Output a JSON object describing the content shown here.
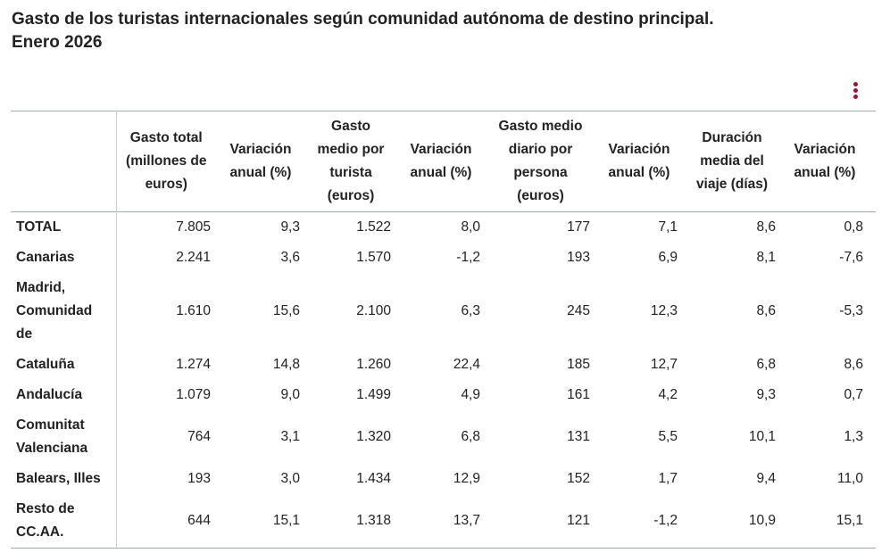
{
  "header": {
    "title": [
      "Gasto de los turistas internacionales según comunidad autónoma de destino principal.",
      "Enero 2026"
    ]
  },
  "table": {
    "columns": [
      "Gasto total (millones de euros)",
      "Variación anual (%)",
      "Gasto medio por turista (euros)",
      "Variación anual (%)",
      "Gasto medio diario por persona (euros)",
      "Variación anual (%)",
      "Duración media del viaje (días)",
      "Variación anual (%)"
    ],
    "rows": [
      [
        "TOTAL",
        "7.805",
        "9,3",
        "1.522",
        "8,0",
        "177",
        "7,1",
        "8,6",
        "0,8"
      ],
      [
        "Canarias",
        "2.241",
        "3,6",
        "1.570",
        "-1,2",
        "193",
        "6,9",
        "8,1",
        "-7,6"
      ],
      [
        "Madrid, Comunidad de",
        "1.610",
        "15,6",
        "2.100",
        "6,3",
        "245",
        "12,3",
        "8,6",
        "-5,3"
      ],
      [
        "Cataluña",
        "1.274",
        "14,8",
        "1.260",
        "22,4",
        "185",
        "12,7",
        "6,8",
        "8,6"
      ],
      [
        "Andalucía",
        "1.079",
        "9,0",
        "1.499",
        "4,9",
        "161",
        "4,2",
        "9,3",
        "0,7"
      ],
      [
        "Comunitat Valenciana",
        "764",
        "3,1",
        "1.320",
        "6,8",
        "131",
        "5,5",
        "10,1",
        "1,3"
      ],
      [
        "Balears, Illes",
        "193",
        "3,0",
        "1.434",
        "12,9",
        "152",
        "1,7",
        "9,4",
        "11,0"
      ],
      [
        "Resto de CC.AA.",
        "644",
        "15,1",
        "1.318",
        "13,7",
        "121",
        "-1,2",
        "10,9",
        "15,1"
      ]
    ]
  }
}
